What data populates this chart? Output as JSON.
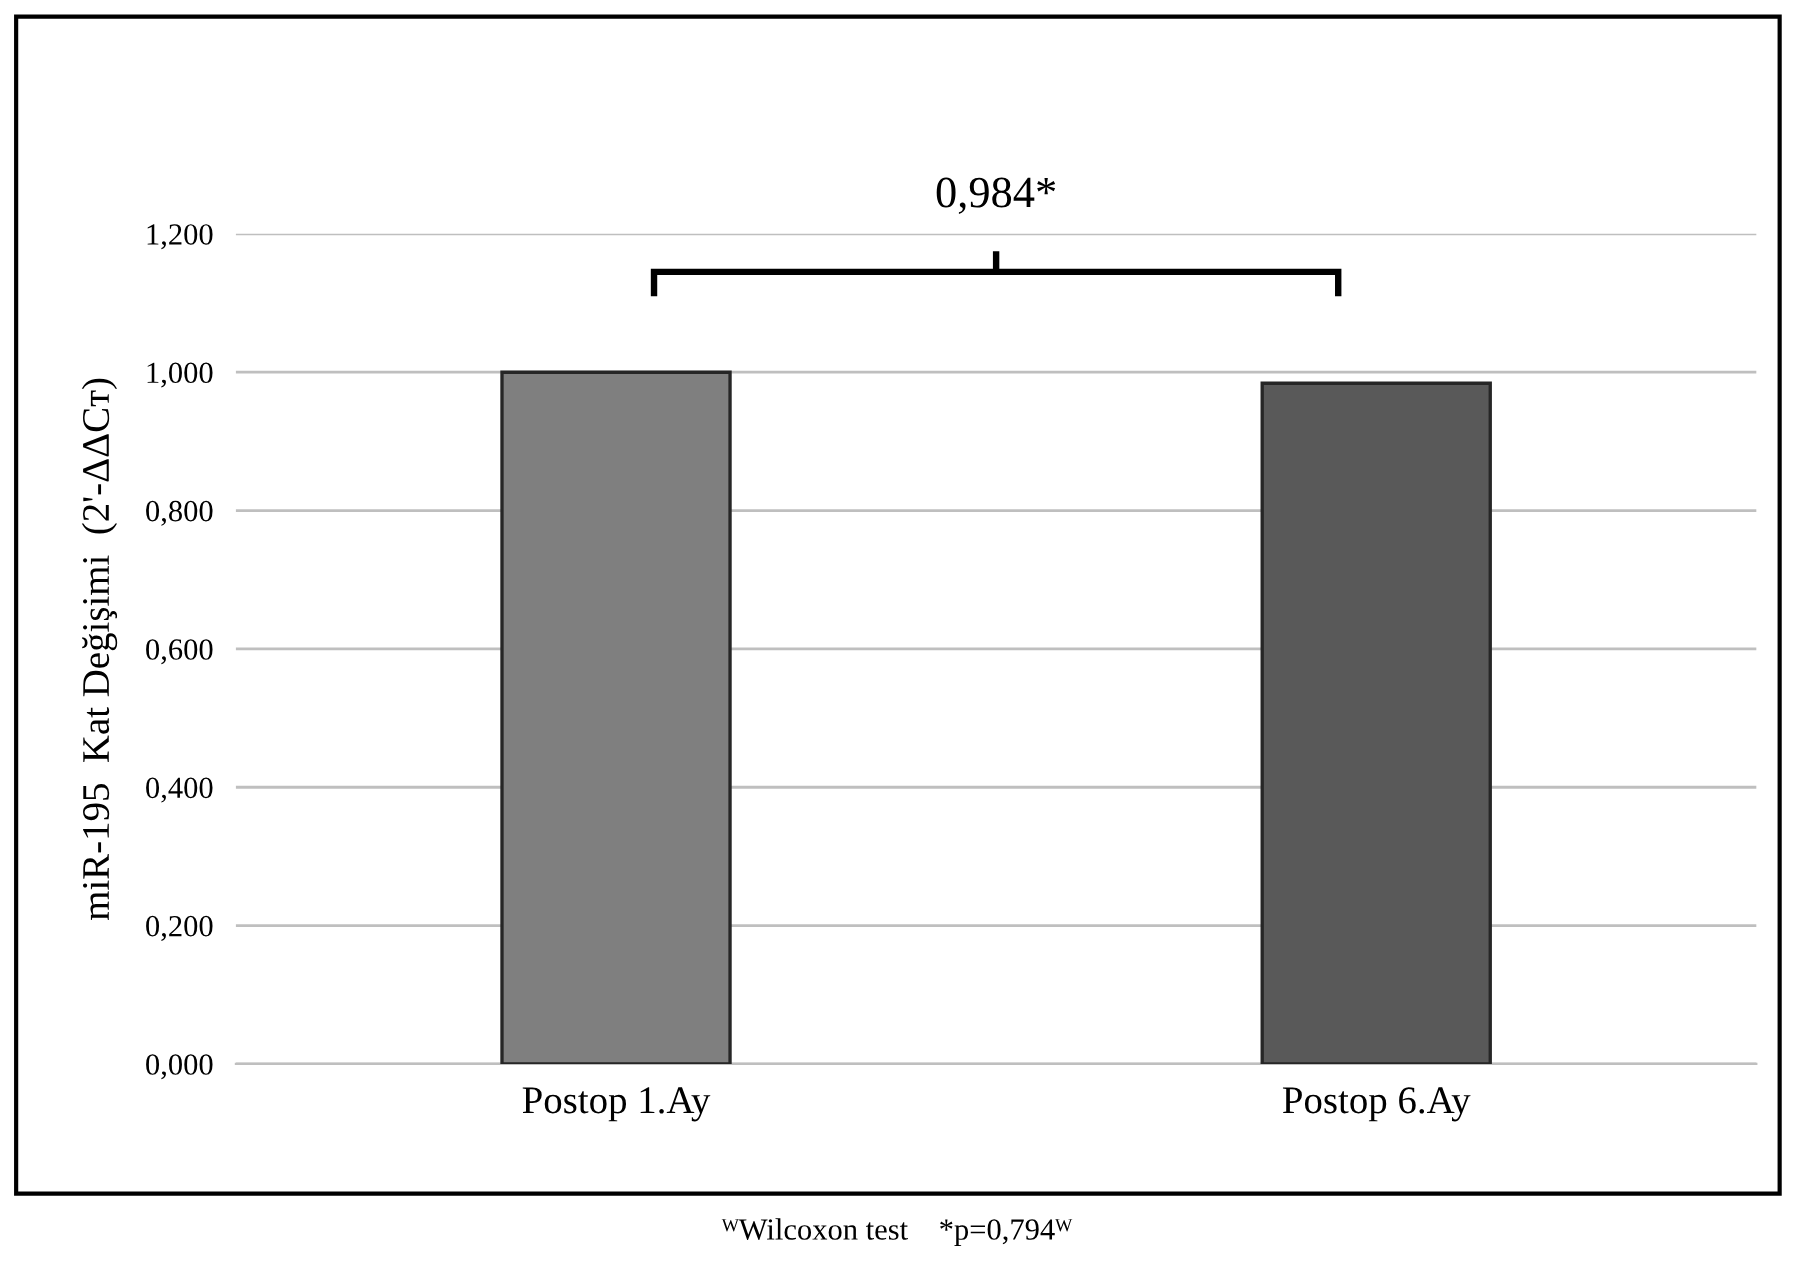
{
  "chart_data": {
    "type": "bar",
    "ylabel": "miR-195  Kat Değişimi  (2'-ΔΔCᴛ)",
    "categories": [
      "Postop 1.Ay",
      "Postop 6.Ay"
    ],
    "values": [
      1.0,
      0.984
    ],
    "colors": [
      "#7f7f7f",
      "#595959"
    ],
    "ylim": [
      0,
      1.2
    ],
    "yticks": [
      {
        "value": 0,
        "label": "0,000"
      },
      {
        "value": 0.2,
        "label": "0,200"
      },
      {
        "value": 0.4,
        "label": "0,400"
      },
      {
        "value": 0.6,
        "label": "0,600"
      },
      {
        "value": 0.8,
        "label": "0,800"
      },
      {
        "value": 1.0,
        "label": "1,000"
      },
      {
        "value": 1.2,
        "label": "1,200"
      }
    ],
    "grid": "y",
    "legend": false,
    "annotations": [
      "0,984*",
      "ᵂWilcoxon test    *p=0,794ᵂ"
    ]
  }
}
